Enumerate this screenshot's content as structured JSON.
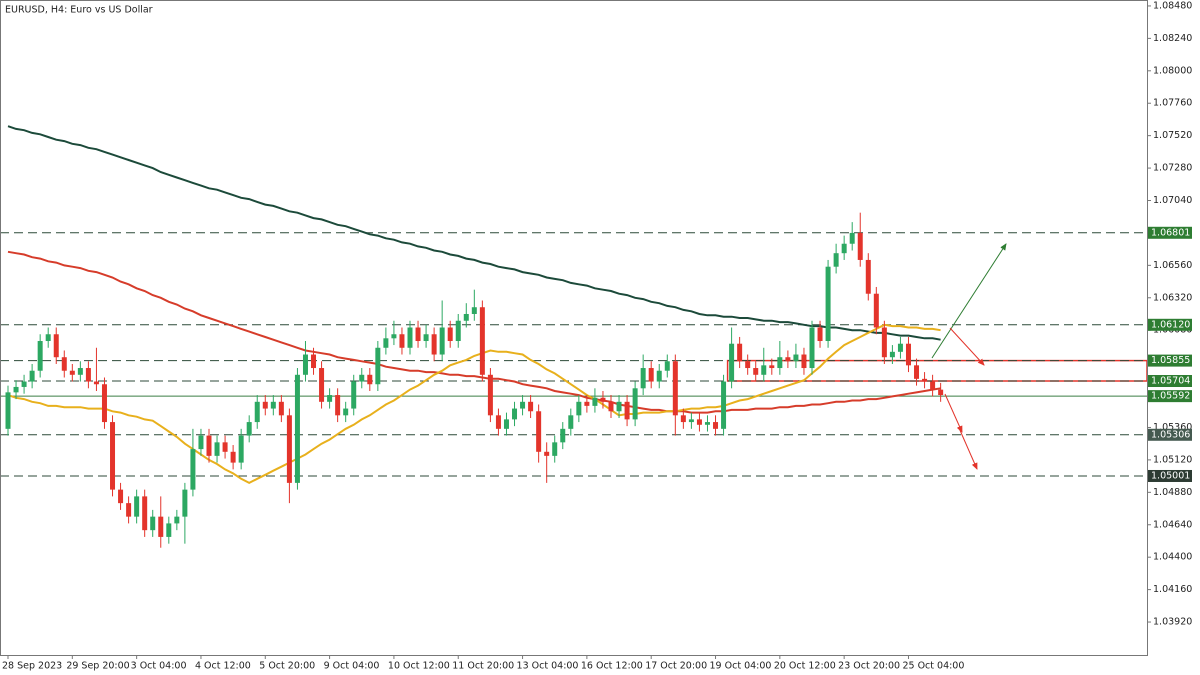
{
  "chart_data": {
    "type": "candlestick",
    "title": "EURUSD, H4:  Euro vs US Dollar",
    "categories": [
      "28 Sep 2023",
      null,
      null,
      null,
      null,
      null,
      null,
      null,
      "29 Sep 20:00",
      null,
      null,
      null,
      null,
      null,
      null,
      null,
      "3 Oct 04:00",
      null,
      null,
      null,
      null,
      null,
      null,
      null,
      "4 Oct 12:00",
      null,
      null,
      null,
      null,
      null,
      null,
      null,
      "5 Oct 20:00",
      null,
      null,
      null,
      null,
      null,
      null,
      null,
      "9 Oct 04:00",
      null,
      null,
      null,
      null,
      null,
      null,
      null,
      "10 Oct 12:00",
      null,
      null,
      null,
      null,
      null,
      null,
      null,
      "11 Oct 20:00",
      null,
      null,
      null,
      null,
      null,
      null,
      null,
      "13 Oct 04:00",
      null,
      null,
      null,
      null,
      null,
      null,
      null,
      "16 Oct 12:00",
      null,
      null,
      null,
      null,
      null,
      null,
      null,
      "17 Oct 20:00",
      null,
      null,
      null,
      null,
      null,
      null,
      null,
      "19 Oct 04:00",
      null,
      null,
      null,
      null,
      null,
      null,
      null,
      "20 Oct 12:00",
      null,
      null,
      null,
      null,
      null,
      null,
      null,
      "23 Oct 20:00",
      null,
      null,
      null,
      null,
      null,
      null,
      null,
      "25 Oct 04:00",
      null,
      null,
      null,
      null
    ],
    "candles": [
      [
        1.0535,
        1.0567,
        1.053,
        1.0562
      ],
      [
        1.0562,
        1.0571,
        1.0557,
        1.0566
      ],
      [
        1.0566,
        1.0575,
        1.0561,
        1.057
      ],
      [
        1.057,
        1.0583,
        1.0565,
        1.0578
      ],
      [
        1.0578,
        1.0605,
        1.0573,
        1.06
      ],
      [
        1.06,
        1.061,
        1.0595,
        1.0605
      ],
      [
        1.0605,
        1.061,
        1.0583,
        1.0588
      ],
      [
        1.0588,
        1.0593,
        1.0573,
        1.0578
      ],
      [
        1.0578,
        1.0583,
        1.057,
        1.0575
      ],
      [
        1.0575,
        1.0585,
        1.057,
        1.058
      ],
      [
        1.058,
        1.0585,
        1.0565,
        1.057
      ],
      [
        1.057,
        1.0595,
        1.0563,
        1.0568
      ],
      [
        1.0568,
        1.0573,
        1.0535,
        1.054
      ],
      [
        1.054,
        1.0545,
        1.0485,
        1.049
      ],
      [
        1.049,
        1.0495,
        1.0475,
        1.048
      ],
      [
        1.048,
        1.0485,
        1.0465,
        1.047
      ],
      [
        1.047,
        1.049,
        1.0465,
        1.0485
      ],
      [
        1.0485,
        1.049,
        1.0455,
        1.046
      ],
      [
        1.046,
        1.0475,
        1.0455,
        1.047
      ],
      [
        1.047,
        1.0485,
        1.0447,
        1.0455
      ],
      [
        1.0455,
        1.047,
        1.045,
        1.0465
      ],
      [
        1.0465,
        1.0475,
        1.046,
        1.047
      ],
      [
        1.047,
        1.0495,
        1.045,
        1.049
      ],
      [
        1.049,
        1.0535,
        1.0485,
        1.052
      ],
      [
        1.052,
        1.0535,
        1.0515,
        1.053
      ],
      [
        1.053,
        1.0535,
        1.051,
        1.0515
      ],
      [
        1.0515,
        1.053,
        1.051,
        1.0525
      ],
      [
        1.0525,
        1.053,
        1.0513,
        1.0518
      ],
      [
        1.0518,
        1.0523,
        1.0505,
        1.051
      ],
      [
        1.051,
        1.0535,
        1.0505,
        1.053
      ],
      [
        1.053,
        1.0545,
        1.0525,
        1.054
      ],
      [
        1.054,
        1.056,
        1.0535,
        1.0555
      ],
      [
        1.0555,
        1.056,
        1.0545,
        1.055
      ],
      [
        1.055,
        1.056,
        1.0545,
        1.0555
      ],
      [
        1.0555,
        1.056,
        1.054,
        1.0545
      ],
      [
        1.0545,
        1.055,
        1.048,
        1.0495
      ],
      [
        1.0495,
        1.058,
        1.049,
        1.0575
      ],
      [
        1.0575,
        1.06,
        1.057,
        1.059
      ],
      [
        1.059,
        1.0595,
        1.0575,
        1.058
      ],
      [
        1.058,
        1.0585,
        1.055,
        1.0555
      ],
      [
        1.0555,
        1.0565,
        1.055,
        1.056
      ],
      [
        1.056,
        1.0565,
        1.054,
        1.0545
      ],
      [
        1.0545,
        1.0555,
        1.054,
        1.055
      ],
      [
        1.055,
        1.0575,
        1.0545,
        1.057
      ],
      [
        1.057,
        1.058,
        1.0565,
        1.0575
      ],
      [
        1.0575,
        1.058,
        1.0563,
        1.0568
      ],
      [
        1.0568,
        1.06,
        1.0563,
        1.0595
      ],
      [
        1.0595,
        1.061,
        1.059,
        1.0602
      ],
      [
        1.0602,
        1.0615,
        1.0597,
        1.0605
      ],
      [
        1.0605,
        1.061,
        1.059,
        1.0595
      ],
      [
        1.0595,
        1.0615,
        1.059,
        1.061
      ],
      [
        1.061,
        1.0615,
        1.0595,
        1.06
      ],
      [
        1.06,
        1.0612,
        1.0595,
        1.0605
      ],
      [
        1.0605,
        1.061,
        1.0585,
        1.059
      ],
      [
        1.059,
        1.063,
        1.0585,
        1.061
      ],
      [
        1.061,
        1.0615,
        1.0595,
        1.06
      ],
      [
        1.06,
        1.062,
        1.0595,
        1.0615
      ],
      [
        1.0615,
        1.0628,
        1.061,
        1.062
      ],
      [
        1.062,
        1.0638,
        1.0615,
        1.0625
      ],
      [
        1.0625,
        1.063,
        1.057,
        1.0575
      ],
      [
        1.0575,
        1.058,
        1.054,
        1.0545
      ],
      [
        1.0545,
        1.055,
        1.053,
        1.0535
      ],
      [
        1.0535,
        1.0547,
        1.053,
        1.0542
      ],
      [
        1.0542,
        1.0555,
        1.0537,
        1.055
      ],
      [
        1.055,
        1.056,
        1.0545,
        1.0555
      ],
      [
        1.0555,
        1.056,
        1.0543,
        1.0548
      ],
      [
        1.0548,
        1.0553,
        1.051,
        1.0518
      ],
      [
        1.0518,
        1.0525,
        1.0495,
        1.0515
      ],
      [
        1.0515,
        1.053,
        1.051,
        1.0525
      ],
      [
        1.0525,
        1.054,
        1.052,
        1.0535
      ],
      [
        1.0535,
        1.055,
        1.053,
        1.0545
      ],
      [
        1.0545,
        1.056,
        1.054,
        1.0555
      ],
      [
        1.0555,
        1.056,
        1.0547,
        1.0552
      ],
      [
        1.0552,
        1.0565,
        1.0547,
        1.0558
      ],
      [
        1.0558,
        1.0563,
        1.055,
        1.0555
      ],
      [
        1.0555,
        1.056,
        1.0543,
        1.0548
      ],
      [
        1.0548,
        1.056,
        1.0543,
        1.0555
      ],
      [
        1.0555,
        1.056,
        1.0537,
        1.0542
      ],
      [
        1.0542,
        1.057,
        1.0537,
        1.0565
      ],
      [
        1.0565,
        1.059,
        1.056,
        1.058
      ],
      [
        1.058,
        1.0585,
        1.0565,
        1.057
      ],
      [
        1.057,
        1.0583,
        1.0565,
        1.0578
      ],
      [
        1.0578,
        1.059,
        1.0573,
        1.0585
      ],
      [
        1.0585,
        1.059,
        1.053,
        1.0545
      ],
      [
        1.0545,
        1.055,
        1.0535,
        1.054
      ],
      [
        1.054,
        1.0547,
        1.0535,
        1.0542
      ],
      [
        1.0542,
        1.0547,
        1.0533,
        1.0538
      ],
      [
        1.0538,
        1.0545,
        1.0533,
        1.054
      ],
      [
        1.054,
        1.0545,
        1.053,
        1.0535
      ],
      [
        1.0535,
        1.0575,
        1.053,
        1.057
      ],
      [
        1.057,
        1.061,
        1.0565,
        1.0598
      ],
      [
        1.0598,
        1.0603,
        1.058,
        1.0585
      ],
      [
        1.0585,
        1.059,
        1.0575,
        1.058
      ],
      [
        1.058,
        1.0585,
        1.057,
        1.0575
      ],
      [
        1.0575,
        1.0595,
        1.057,
        1.0582
      ],
      [
        1.0582,
        1.0587,
        1.0575,
        1.058
      ],
      [
        1.058,
        1.06,
        1.0575,
        1.0588
      ],
      [
        1.0588,
        1.0593,
        1.058,
        1.0585
      ],
      [
        1.0585,
        1.0598,
        1.058,
        1.059
      ],
      [
        1.059,
        1.0595,
        1.0575,
        1.058
      ],
      [
        1.058,
        1.0615,
        1.0575,
        1.061
      ],
      [
        1.061,
        1.0615,
        1.0595,
        1.06
      ],
      [
        1.06,
        1.066,
        1.0595,
        1.0655
      ],
      [
        1.0655,
        1.0672,
        1.065,
        1.0665
      ],
      [
        1.0665,
        1.0678,
        1.066,
        1.0672
      ],
      [
        1.0672,
        1.0688,
        1.0667,
        1.068
      ],
      [
        1.068,
        1.0695,
        1.0655,
        1.066
      ],
      [
        1.066,
        1.0665,
        1.063,
        1.0635
      ],
      [
        1.0635,
        1.064,
        1.0605,
        1.061
      ],
      [
        1.061,
        1.0615,
        1.0583,
        1.0588
      ],
      [
        1.0588,
        1.0597,
        1.0583,
        1.0592
      ],
      [
        1.0592,
        1.0603,
        1.0587,
        1.0598
      ],
      [
        1.0598,
        1.0603,
        1.0577,
        1.0582
      ],
      [
        1.0582,
        1.0587,
        1.0567,
        1.0572
      ],
      [
        1.0572,
        1.0577,
        1.0565,
        1.057
      ],
      [
        1.057,
        1.0575,
        1.0559,
        1.0564
      ],
      [
        1.0564,
        1.0569,
        1.0555,
        1.056
      ]
    ],
    "up_color": "#2ca862",
    "down_color": "#e3342b",
    "series": [
      {
        "color": "#1c4a3a",
        "values": [
          1.0759,
          1.0757,
          1.0756,
          1.0754,
          1.0753,
          1.0751,
          1.0749,
          1.0748,
          1.0746,
          1.0745,
          1.0743,
          1.0742,
          1.074,
          1.0738,
          1.0736,
          1.0734,
          1.0732,
          1.073,
          1.0728,
          1.0725,
          1.0723,
          1.0721,
          1.0719,
          1.0717,
          1.0715,
          1.0713,
          1.0712,
          1.071,
          1.0708,
          1.0706,
          1.0705,
          1.0703,
          1.0701,
          1.07,
          1.0698,
          1.0696,
          1.0695,
          1.0693,
          1.0691,
          1.069,
          1.0688,
          1.0686,
          1.0685,
          1.0683,
          1.0681,
          1.0679,
          1.0678,
          1.0676,
          1.0675,
          1.0673,
          1.0672,
          1.067,
          1.0669,
          1.0667,
          1.0666,
          1.0664,
          1.0663,
          1.0661,
          1.066,
          1.0658,
          1.0657,
          1.0655,
          1.0654,
          1.0653,
          1.0651,
          1.065,
          1.0649,
          1.0647,
          1.0646,
          1.0645,
          1.0643,
          1.0642,
          1.0641,
          1.0639,
          1.0638,
          1.0637,
          1.0635,
          1.0634,
          1.0632,
          1.0631,
          1.0629,
          1.0628,
          1.0626,
          1.0625,
          1.0623,
          1.0622,
          1.062,
          1.0619,
          1.0619,
          1.0618,
          1.0618,
          1.0617,
          1.0617,
          1.0616,
          1.0615,
          1.0615,
          1.0614,
          1.0614,
          1.0613,
          1.0612,
          1.0611,
          1.0611,
          1.061,
          1.061,
          1.0609,
          1.0608,
          1.0608,
          1.0607,
          1.0606,
          1.0606,
          1.0605,
          1.0604,
          1.0604,
          1.0603,
          1.0602,
          1.0602,
          1.0601
        ]
      },
      {
        "color": "#d63c2a",
        "values": [
          1.0666,
          1.0665,
          1.0664,
          1.0662,
          1.0661,
          1.0659,
          1.0658,
          1.0656,
          1.0655,
          1.0654,
          1.0652,
          1.0651,
          1.0649,
          1.0647,
          1.0644,
          1.0642,
          1.0639,
          1.0637,
          1.0634,
          1.0632,
          1.0629,
          1.0627,
          1.0624,
          1.0622,
          1.0619,
          1.0617,
          1.0615,
          1.0613,
          1.0611,
          1.0609,
          1.0607,
          1.0605,
          1.0603,
          1.0601,
          1.0599,
          1.0597,
          1.0595,
          1.0593,
          1.0592,
          1.0591,
          1.059,
          1.0588,
          1.0587,
          1.0586,
          1.0585,
          1.0584,
          1.0583,
          1.0581,
          1.058,
          1.0579,
          1.0578,
          1.0578,
          1.0577,
          1.0577,
          1.0576,
          1.0575,
          1.0575,
          1.0574,
          1.0574,
          1.0573,
          1.0572,
          1.0572,
          1.0571,
          1.057,
          1.0568,
          1.0567,
          1.0566,
          1.0565,
          1.0563,
          1.0562,
          1.0561,
          1.056,
          1.0558,
          1.0557,
          1.0556,
          1.0555,
          1.0553,
          1.0552,
          1.0551,
          1.055,
          1.0549,
          1.0549,
          1.0548,
          1.0548,
          1.0548,
          1.0547,
          1.0547,
          1.0547,
          1.0548,
          1.0548,
          1.0549,
          1.0549,
          1.0549,
          1.055,
          1.055,
          1.055,
          1.0551,
          1.0551,
          1.0552,
          1.0552,
          1.0553,
          1.0553,
          1.0554,
          1.0555,
          1.0555,
          1.0556,
          1.0556,
          1.0557,
          1.0557,
          1.0558,
          1.0559,
          1.056,
          1.0561,
          1.0562,
          1.0563,
          1.0564,
          1.0565
        ]
      },
      {
        "color": "#e8b01c",
        "values": [
          1.056,
          1.0558,
          1.0557,
          1.0555,
          1.0554,
          1.0552,
          1.0552,
          1.0551,
          1.0551,
          1.0551,
          1.055,
          1.055,
          1.055,
          1.0548,
          1.0547,
          1.0545,
          1.0544,
          1.0542,
          1.0541,
          1.0537,
          1.0533,
          1.0529,
          1.0524,
          1.052,
          1.0516,
          1.0512,
          1.0509,
          1.0505,
          1.0502,
          1.0498,
          1.0495,
          1.0498,
          1.0501,
          1.0504,
          1.0507,
          1.051,
          1.0513,
          1.0516,
          1.052,
          1.0524,
          1.0527,
          1.0531,
          1.0535,
          1.0538,
          1.0542,
          1.0545,
          1.0549,
          1.0553,
          1.0556,
          1.056,
          1.0564,
          1.0567,
          1.0571,
          1.0575,
          1.0578,
          1.0582,
          1.0584,
          1.0586,
          1.0589,
          1.0591,
          1.0593,
          1.0592,
          1.0592,
          1.0591,
          1.059,
          1.0586,
          1.0583,
          1.0579,
          1.0576,
          1.0572,
          1.0568,
          1.0564,
          1.056,
          1.0557,
          1.0553,
          1.0549,
          1.0545,
          1.0546,
          1.0546,
          1.0547,
          1.0547,
          1.0547,
          1.0548,
          1.0548,
          1.0549,
          1.055,
          1.055,
          1.0551,
          1.0551,
          1.0552,
          1.0554,
          1.0556,
          1.0557,
          1.0559,
          1.0561,
          1.0563,
          1.0565,
          1.0567,
          1.0569,
          1.0571,
          1.0576,
          1.0581,
          1.0587,
          1.0592,
          1.0597,
          1.06,
          1.0603,
          1.0606,
          1.0609,
          1.0612,
          1.0611,
          1.0611,
          1.061,
          1.061,
          1.0609,
          1.0609,
          1.0608
        ]
      }
    ],
    "ylim": [
      1.03676,
      1.08524
    ],
    "yticks": [
      {
        "value": 1.0848,
        "label": "1.08480"
      },
      {
        "value": 1.0824,
        "label": "1.08240"
      },
      {
        "value": 1.08,
        "label": "1.08000"
      },
      {
        "value": 1.0776,
        "label": "1.07760"
      },
      {
        "value": 1.0752,
        "label": "1.07520"
      },
      {
        "value": 1.0728,
        "label": "1.07280"
      },
      {
        "value": 1.0704,
        "label": "1.07040"
      },
      {
        "value": 1.068,
        "label": "1.06800"
      },
      {
        "value": 1.0656,
        "label": "1.06560"
      },
      {
        "value": 1.0632,
        "label": "1.06320"
      },
      {
        "value": 1.0608,
        "label": "1.06080"
      },
      {
        "value": 1.0584,
        "label": "1.05840"
      },
      {
        "value": 1.056,
        "label": "1.05600"
      },
      {
        "value": 1.0536,
        "label": "1.05360"
      },
      {
        "value": 1.0512,
        "label": "1.05120"
      },
      {
        "value": 1.0488,
        "label": "1.04880"
      },
      {
        "value": 1.0464,
        "label": "1.04640"
      },
      {
        "value": 1.044,
        "label": "1.04400"
      },
      {
        "value": 1.0416,
        "label": "1.04160"
      },
      {
        "value": 1.0392,
        "label": "1.03920"
      }
    ],
    "levels": [
      1.06801,
      {
        "value": 1.0612,
        "label": "1.06120"
      },
      1.05855,
      1.05704,
      1.05592,
      1.05306,
      1.05001
    ],
    "level_colors": [
      "#2e7d32",
      "#2e7d32",
      "#2e7d32",
      "#2e7d32",
      "#2e7d32",
      "#455a50",
      "#2d3b33"
    ],
    "level_solid": [
      false,
      false,
      false,
      false,
      true,
      false,
      false
    ],
    "zone": {
      "high": 1.05855,
      "low": 1.05704,
      "color": "#e3342b"
    }
  }
}
